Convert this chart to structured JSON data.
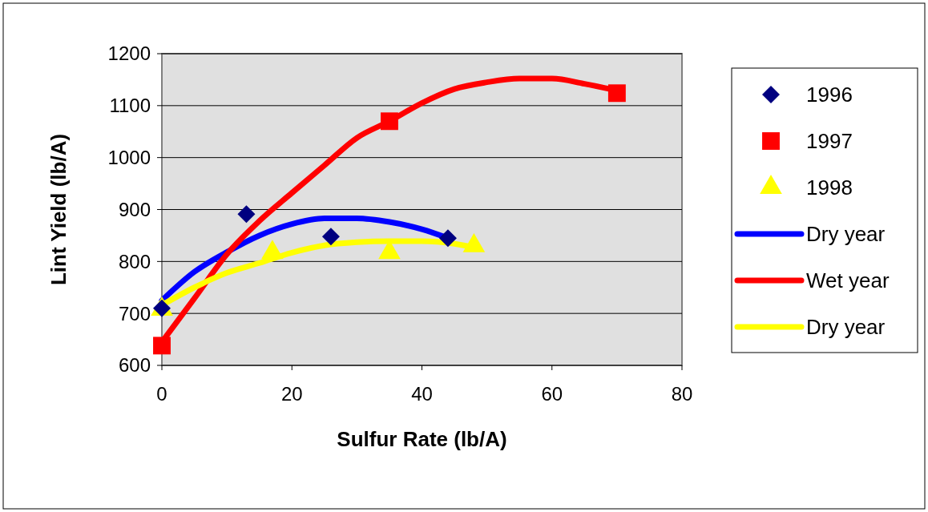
{
  "chart_data": {
    "type": "scatter",
    "xlabel": "Sulfur Rate (lb/A)",
    "ylabel": "Lint Yield (lb/A)",
    "xlim": [
      0,
      80
    ],
    "xticks": [
      0,
      20,
      40,
      60,
      80
    ],
    "ylim": [
      600,
      1200
    ],
    "yticks": [
      600,
      700,
      800,
      900,
      1000,
      1100,
      1200
    ],
    "grid": "y",
    "legend": "right",
    "series": [
      {
        "name": "1996",
        "marker": "diamond",
        "color": "#000080",
        "x": [
          0,
          13,
          26,
          44
        ],
        "values": [
          710,
          891,
          848,
          845
        ]
      },
      {
        "name": "1997",
        "marker": "square",
        "color": "#ff0000",
        "x": [
          0,
          35,
          70
        ],
        "values": [
          638,
          1070,
          1124
        ]
      },
      {
        "name": "1998",
        "marker": "triangle",
        "color": "#ffff00",
        "x": [
          0,
          17,
          35,
          48
        ],
        "values": [
          708,
          817,
          817,
          830
        ]
      },
      {
        "name": "Dry year",
        "type": "line",
        "color": "#0000ff",
        "x": [
          0,
          5,
          10,
          15,
          20,
          25,
          30,
          35,
          40,
          44
        ],
        "values": [
          725,
          780,
          818,
          850,
          872,
          883,
          883,
          876,
          862,
          845
        ]
      },
      {
        "name": "Wet year",
        "type": "line",
        "color": "#ff0000",
        "x": [
          0,
          5,
          10,
          15,
          20,
          25,
          30,
          35,
          40,
          45,
          50,
          55,
          60,
          65,
          70
        ],
        "values": [
          645,
          729,
          814,
          878,
          932,
          985,
          1038,
          1070,
          1105,
          1132,
          1145,
          1152,
          1152,
          1142,
          1129
        ]
      },
      {
        "name": "Dry year",
        "type": "line",
        "color": "#ffff00",
        "x": [
          0,
          5,
          10,
          15,
          20,
          25,
          30,
          35,
          40,
          45,
          48
        ],
        "values": [
          716,
          750,
          778,
          797,
          817,
          831,
          837,
          839,
          839,
          834,
          827
        ]
      }
    ]
  }
}
